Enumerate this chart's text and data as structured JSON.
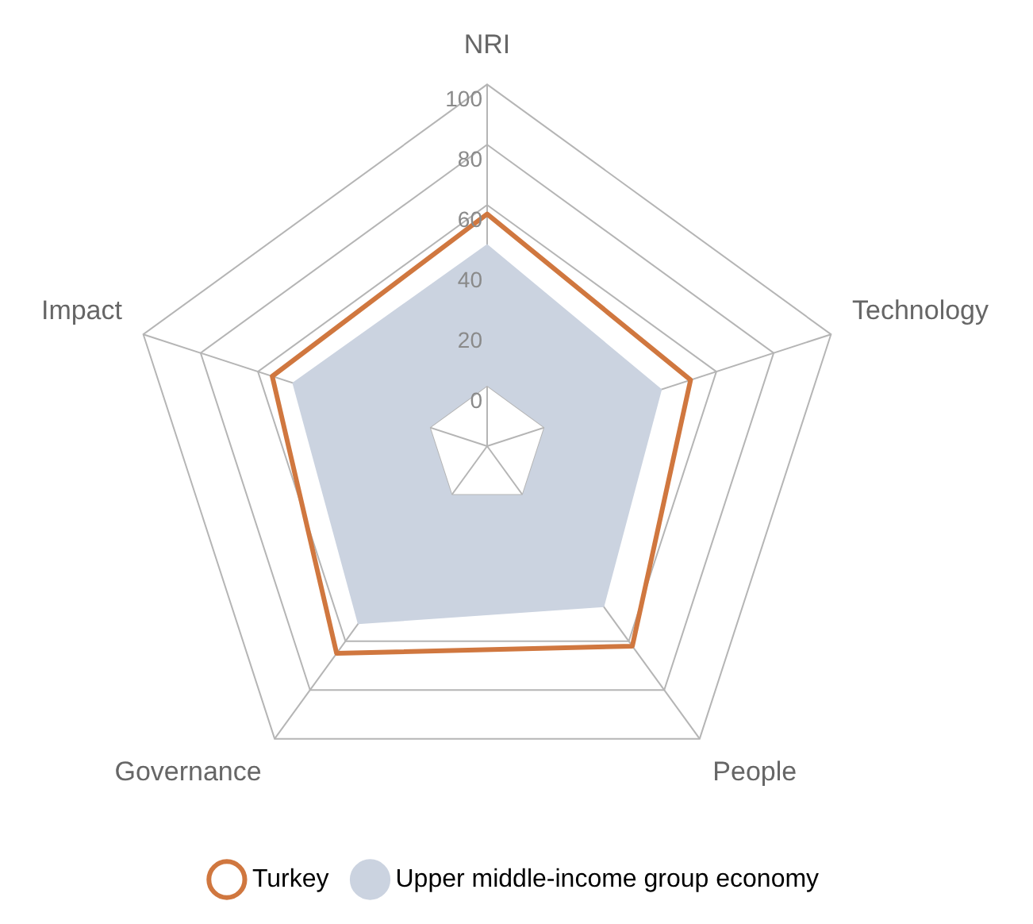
{
  "chart_data": {
    "type": "radar",
    "categories": [
      "NRI",
      "Technology",
      "People",
      "Governance",
      "Impact"
    ],
    "series": [
      {
        "name": "Turkey",
        "color": "#d0773f",
        "values": [
          57,
          51,
          62,
          65,
          55
        ]
      },
      {
        "name": "Upper middle-income group economy",
        "color": "#cbd3e0",
        "type": "area",
        "values": [
          47,
          41,
          46,
          53,
          48
        ]
      }
    ],
    "ylim": [
      -20,
      100
    ],
    "yticks": [
      0,
      20,
      40,
      60,
      80,
      100
    ],
    "grid": true,
    "legend": "bottom",
    "marker": "none",
    "line_style": "solid"
  }
}
